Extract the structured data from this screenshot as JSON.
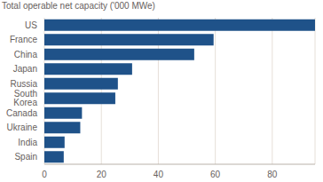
{
  "chart_data": {
    "type": "bar",
    "orientation": "horizontal",
    "subtitle": "Total operable net capacity ('000 MWe)",
    "categories": [
      "US",
      "France",
      "China",
      "Japan",
      "Russia",
      "South Korea",
      "Canada",
      "Ukraine",
      "India",
      "Spain"
    ],
    "values": [
      95,
      59.4,
      52.6,
      30.8,
      25.8,
      24.9,
      13.2,
      12.6,
      7.1,
      6.8
    ],
    "color": "#1f5289",
    "xlim": [
      0,
      95
    ],
    "xticks": [
      0,
      20,
      40,
      60,
      80
    ],
    "grid": true
  }
}
